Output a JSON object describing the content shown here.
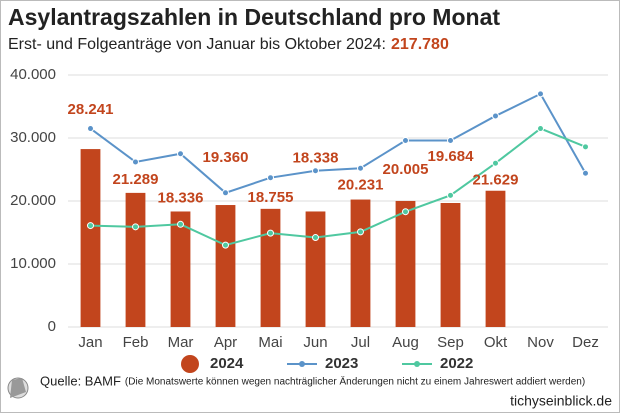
{
  "chart_data": {
    "type": "bar_line",
    "title": "Asylantragszahlen in Deutschland pro Monat",
    "subtitle": "Erst- und Folgeanträge von Januar bis Oktober 2024:",
    "subtitle_total": "217.780",
    "source": "Quelle: BAMF",
    "source_note": "(Die Monatswerte können wegen nachträglicher Änderungen nicht zu einem Jahreswert addiert werden)",
    "brand": "tichyseinblick.de",
    "categories": [
      "Jan",
      "Feb",
      "Mar",
      "Apr",
      "Mai",
      "Jun",
      "Jul",
      "Aug",
      "Sep",
      "Okt",
      "Nov",
      "Dez"
    ],
    "series": [
      {
        "name": "2024",
        "kind": "bar",
        "color": "#c2451d",
        "values": [
          28241,
          21289,
          18336,
          19360,
          18755,
          18338,
          20231,
          20005,
          19684,
          21629,
          null,
          null
        ],
        "value_labels": [
          "28.241",
          "21.289",
          "18.336",
          "19.360",
          "18.755",
          "18.338",
          "20.231",
          "20.005",
          "19.684",
          "21.629",
          null,
          null
        ]
      },
      {
        "name": "2023",
        "kind": "line",
        "color": "#5b93c9",
        "values": [
          31500,
          26200,
          27500,
          21300,
          23700,
          24800,
          25200,
          29600,
          29600,
          33500,
          37000,
          24400
        ]
      },
      {
        "name": "2022",
        "kind": "line",
        "color": "#4fc8a0",
        "values": [
          16100,
          15900,
          16300,
          13000,
          14900,
          14200,
          15100,
          18300,
          20900,
          26000,
          31500,
          28600
        ]
      }
    ],
    "ylim": [
      0,
      40000
    ],
    "yticks": [
      0,
      {
        "value": 10000,
        "label": "10.000"
      },
      {
        "value": 20000,
        "label": "20.000"
      },
      {
        "value": 30000,
        "label": "30.000"
      },
      {
        "value": 40000,
        "label": "40.000"
      }
    ],
    "grid": true,
    "legend": "bottom"
  }
}
